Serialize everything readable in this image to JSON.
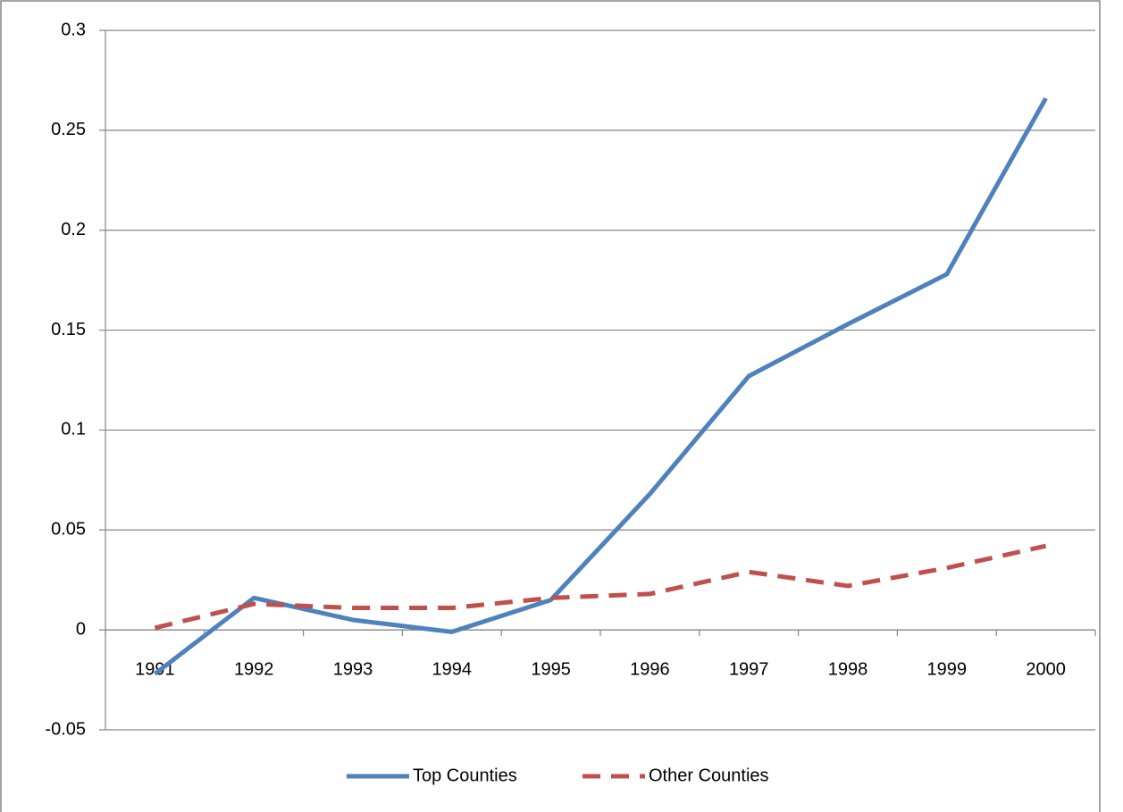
{
  "chart_data": {
    "type": "line",
    "categories": [
      "1991",
      "1992",
      "1993",
      "1994",
      "1995",
      "1996",
      "1997",
      "1998",
      "1999",
      "2000"
    ],
    "series": [
      {
        "name": "Top Counties",
        "color": "#4f81bd",
        "style": "solid",
        "values": [
          -0.022,
          0.016,
          0.005,
          -0.001,
          0.015,
          0.068,
          0.127,
          0.153,
          0.178,
          0.266
        ]
      },
      {
        "name": "Other Counties",
        "color": "#c0504d",
        "style": "dashed",
        "values": [
          0.001,
          0.013,
          0.011,
          0.011,
          0.016,
          0.018,
          0.029,
          0.022,
          0.031,
          0.042
        ]
      }
    ],
    "ylim": [
      -0.05,
      0.3
    ],
    "yticks": [
      -0.05,
      0,
      0.05,
      0.1,
      0.15,
      0.2,
      0.25,
      0.3
    ],
    "grid": true,
    "legend": "bottom"
  }
}
